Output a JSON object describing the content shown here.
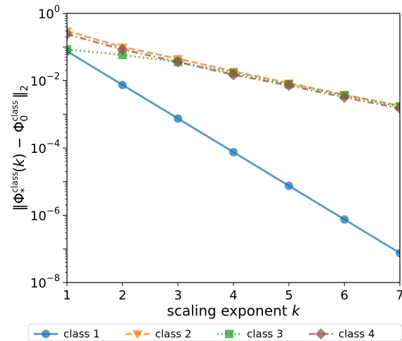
{
  "chart_data": {
    "type": "line",
    "xlabel_text": "scaling exponent ",
    "xlabel_var": "k",
    "ylabel": "‖Φ*class(k) − Φ0class‖2",
    "yscale": "log",
    "xlim": [
      1,
      7
    ],
    "ylim": [
      1e-08,
      1
    ],
    "x": [
      1,
      2,
      3,
      4,
      5,
      6,
      7
    ],
    "x_ticks": [
      "1",
      "2",
      "3",
      "4",
      "5",
      "6",
      "7"
    ],
    "y_ticks": [
      {
        "base": "10",
        "exp": "0",
        "value": 1
      },
      {
        "base": "10",
        "exp": "−2",
        "value": 0.01
      },
      {
        "base": "10",
        "exp": "−4",
        "value": 0.0001
      },
      {
        "base": "10",
        "exp": "−6",
        "value": 1e-06
      },
      {
        "base": "10",
        "exp": "−8",
        "value": 1e-08
      }
    ],
    "legend_position": "bottom",
    "series": [
      {
        "name": "class 1",
        "color": "#1f77b4",
        "marker": "circle",
        "dash": "solid",
        "values": [
          0.075,
          0.0075,
          0.00075,
          7.5e-05,
          7.5e-06,
          7.5e-07,
          7.5e-08
        ]
      },
      {
        "name": "class 2",
        "color": "#ff7f0e",
        "marker": "triangle-down",
        "dash": "dashed",
        "values": [
          0.3,
          0.1,
          0.045,
          0.019,
          0.0085,
          0.0038,
          0.0018
        ]
      },
      {
        "name": "class 3",
        "color": "#2ca02c",
        "marker": "square",
        "dash": "dotted",
        "values": [
          0.085,
          0.058,
          0.036,
          0.017,
          0.0078,
          0.0037,
          0.0017
        ]
      },
      {
        "name": "class 4",
        "color": "#8c564b",
        "marker": "diamond",
        "dash": "dashdot",
        "values": [
          0.24,
          0.085,
          0.036,
          0.015,
          0.0072,
          0.0032,
          0.0015
        ]
      }
    ]
  }
}
